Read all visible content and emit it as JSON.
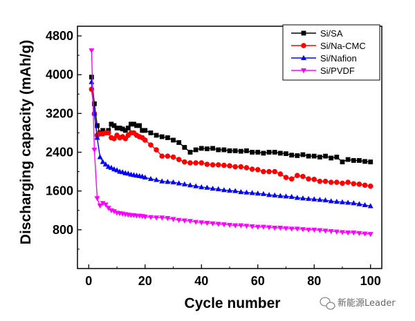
{
  "chart_data": {
    "type": "line",
    "xlabel": "Cycle number",
    "ylabel": "Discharging capacity (mAh/g)",
    "xlim": [
      -4,
      104
    ],
    "ylim": [
      0,
      5000
    ],
    "x_ticks": [
      0,
      20,
      40,
      60,
      80,
      100
    ],
    "y_ticks": [
      800,
      1600,
      2400,
      3200,
      4000,
      4800
    ],
    "grid": false,
    "legend_position": "top-right",
    "x": [
      1,
      2,
      3,
      4,
      5,
      6,
      7,
      8,
      9,
      10,
      11,
      12,
      13,
      14,
      15,
      16,
      17,
      18,
      19,
      20,
      22,
      24,
      26,
      28,
      30,
      32,
      34,
      36,
      38,
      40,
      42,
      44,
      46,
      48,
      50,
      52,
      54,
      56,
      58,
      60,
      62,
      64,
      66,
      68,
      70,
      72,
      74,
      76,
      78,
      80,
      82,
      84,
      86,
      88,
      90,
      92,
      94,
      96,
      98,
      100
    ],
    "series": [
      {
        "name": "Si/SA",
        "color": "#000000",
        "marker": "square",
        "values": [
          3950,
          3400,
          2950,
          2800,
          2850,
          2800,
          2850,
          2980,
          2950,
          2900,
          2900,
          2880,
          2850,
          2900,
          2980,
          2980,
          2950,
          2950,
          2850,
          2850,
          2800,
          2750,
          2720,
          2700,
          2650,
          2600,
          2500,
          2400,
          2450,
          2480,
          2470,
          2480,
          2450,
          2450,
          2430,
          2430,
          2420,
          2430,
          2400,
          2400,
          2380,
          2400,
          2400,
          2380,
          2370,
          2340,
          2330,
          2350,
          2320,
          2320,
          2300,
          2320,
          2280,
          2300,
          2200,
          2250,
          2230,
          2230,
          2210,
          2200
        ]
      },
      {
        "name": "Si/Na-CMC",
        "color": "#ff0000",
        "marker": "circle",
        "values": [
          3700,
          3200,
          2750,
          2780,
          2780,
          2800,
          2800,
          2700,
          2680,
          2750,
          2700,
          2720,
          2680,
          2750,
          2800,
          2800,
          2750,
          2720,
          2700,
          2650,
          2550,
          2450,
          2320,
          2320,
          2300,
          2250,
          2200,
          2180,
          2180,
          2180,
          2150,
          2140,
          2140,
          2130,
          2120,
          2100,
          2100,
          2080,
          2050,
          2040,
          2000,
          2000,
          2000,
          1950,
          1880,
          1850,
          1920,
          1900,
          1850,
          1840,
          1800,
          1800,
          1780,
          1780,
          1760,
          1780,
          1750,
          1740,
          1720,
          1700
        ]
      },
      {
        "name": "Si/Nafion",
        "color": "#0000ff",
        "marker": "triangle-up",
        "values": [
          3850,
          3200,
          2700,
          2300,
          2200,
          2150,
          2100,
          2080,
          2050,
          2030,
          2000,
          1990,
          1970,
          1960,
          1940,
          1930,
          1920,
          1910,
          1900,
          1880,
          1850,
          1830,
          1800,
          1790,
          1780,
          1760,
          1740,
          1720,
          1700,
          1680,
          1670,
          1650,
          1640,
          1620,
          1610,
          1600,
          1580,
          1570,
          1560,
          1550,
          1540,
          1520,
          1510,
          1500,
          1490,
          1480,
          1460,
          1450,
          1440,
          1430,
          1420,
          1410,
          1390,
          1380,
          1370,
          1360,
          1350,
          1330,
          1310,
          1290
        ]
      },
      {
        "name": "Si/PVDF",
        "color": "#ff00ff",
        "marker": "triangle-down",
        "values": [
          4500,
          2450,
          1450,
          1300,
          1350,
          1320,
          1250,
          1200,
          1180,
          1150,
          1140,
          1130,
          1120,
          1110,
          1100,
          1100,
          1090,
          1090,
          1080,
          1070,
          1060,
          1050,
          1050,
          1040,
          1020,
          1000,
          990,
          980,
          960,
          950,
          940,
          930,
          920,
          910,
          900,
          890,
          890,
          880,
          870,
          860,
          860,
          850,
          840,
          840,
          830,
          820,
          820,
          810,
          800,
          800,
          790,
          780,
          770,
          760,
          750,
          740,
          740,
          730,
          720,
          710
        ]
      }
    ]
  },
  "watermark": {
    "text": "新能源Leader",
    "icon": "wechat-icon"
  }
}
